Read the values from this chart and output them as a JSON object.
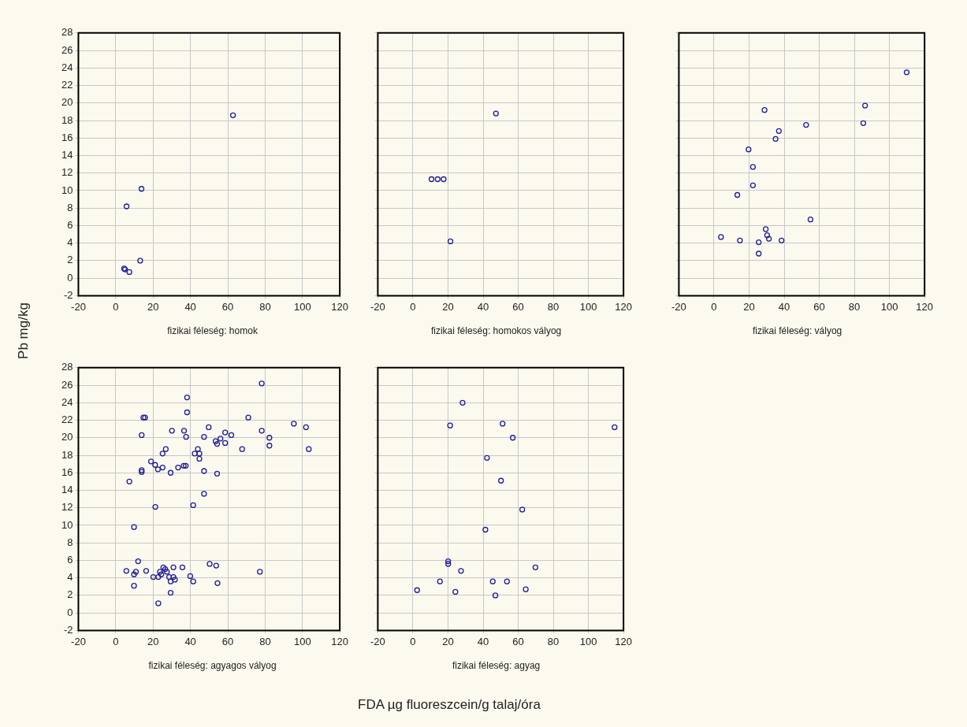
{
  "chart_data": [
    {
      "type": "scatter",
      "title": "fizikai féleség: homok",
      "ylabel": "Pb mg/kg",
      "xlim": [
        -20,
        120
      ],
      "xticks": [
        -20,
        0,
        20,
        40,
        60,
        80,
        100,
        120
      ],
      "ylim": [
        -2,
        28
      ],
      "yticks": [
        -2,
        0,
        2,
        4,
        6,
        8,
        10,
        12,
        14,
        16,
        18,
        20,
        22,
        24,
        26,
        28
      ],
      "grid": true,
      "marker": "circle",
      "series": [
        {
          "color": "#1f1f99",
          "x": [
            62.8,
            13.8,
            5.8,
            13.1,
            4.5,
            5.0,
            7.3
          ],
          "values": [
            18.6,
            10.2,
            8.2,
            2.0,
            1.1,
            1.0,
            0.7
          ]
        }
      ]
    },
    {
      "type": "scatter",
      "title": "fizikai féleség: homokos vályog",
      "xlim": [
        -20,
        120
      ],
      "xticks": [
        -20,
        0,
        20,
        40,
        60,
        80,
        100,
        120
      ],
      "ylim": [
        -2,
        28
      ],
      "yticks": [
        -2,
        0,
        2,
        4,
        6,
        8,
        10,
        12,
        14,
        16,
        18,
        20,
        22,
        24,
        26,
        28
      ],
      "grid": true,
      "marker": "circle",
      "tick_labels": "x",
      "series": [
        {
          "color": "#1f1f99",
          "x": [
            47.3,
            10.6,
            14.1,
            17.5,
            21.4
          ],
          "values": [
            18.8,
            11.3,
            11.3,
            11.3,
            4.2
          ]
        }
      ]
    },
    {
      "type": "scatter",
      "title": "fizikai féleség: vályog",
      "xlim": [
        -20,
        120
      ],
      "xticks": [
        -20,
        0,
        20,
        40,
        60,
        80,
        100,
        120
      ],
      "ylim": [
        -2,
        28
      ],
      "yticks": [
        -2,
        0,
        2,
        4,
        6,
        8,
        10,
        12,
        14,
        16,
        18,
        20,
        22,
        24,
        26,
        28
      ],
      "grid": true,
      "marker": "circle",
      "tick_labels": "x",
      "series": [
        {
          "color": "#1f1f99",
          "x": [
            109.8,
            86.1,
            85.1,
            28.8,
            52.5,
            37.0,
            35.1,
            19.7,
            22.2,
            22.2,
            13.3,
            55.0,
            29.5,
            30.3,
            31.3,
            4.0,
            14.8,
            25.5,
            38.5,
            25.5
          ],
          "values": [
            23.5,
            19.7,
            17.7,
            19.2,
            17.5,
            16.8,
            15.9,
            14.7,
            12.7,
            10.6,
            9.5,
            6.7,
            5.6,
            4.9,
            4.5,
            4.7,
            4.3,
            4.1,
            4.3,
            2.8
          ]
        }
      ]
    },
    {
      "type": "scatter",
      "title": "fizikai féleség: agyagos vályog",
      "xlim": [
        -20,
        120
      ],
      "xticks": [
        -20,
        0,
        20,
        40,
        60,
        80,
        100,
        120
      ],
      "ylim": [
        -2,
        28
      ],
      "yticks": [
        -2,
        0,
        2,
        4,
        6,
        8,
        10,
        12,
        14,
        16,
        18,
        20,
        22,
        24,
        26,
        28
      ],
      "grid": true,
      "marker": "circle",
      "series": [
        {
          "color": "#1f1f99",
          "x": [
            78.2,
            38.2,
            38.2,
            14.8,
            15.7,
            71.0,
            95.4,
            101.9,
            103.4,
            78.2,
            82.3,
            82.3,
            30.1,
            36.6,
            37.7,
            49.8,
            47.3,
            13.9,
            58.6,
            61.9,
            56.1,
            53.5,
            54.3,
            58.6,
            67.7,
            26.8,
            25.1,
            44.0,
            42.3,
            44.8,
            44.8,
            18.9,
            21.1,
            22.6,
            25.1,
            29.4,
            33.4,
            36.4,
            37.5,
            13.9,
            13.9,
            47.3,
            54.3,
            7.3,
            47.3,
            21.2,
            41.5,
            9.8,
            12.0,
            5.7,
            10.8,
            9.8,
            9.8,
            16.3,
            20.1,
            22.8,
            23.7,
            25.5,
            26.5,
            27.4,
            24.4,
            28.6,
            29.4,
            30.9,
            30.9,
            31.7,
            29.4,
            22.8,
            35.7,
            39.9,
            41.5,
            50.3,
            53.8,
            54.5,
            77.2
          ],
          "values": [
            26.2,
            24.6,
            22.9,
            22.3,
            22.3,
            22.3,
            21.6,
            21.2,
            18.7,
            20.8,
            20.0,
            19.1,
            20.8,
            20.8,
            20.1,
            21.2,
            20.1,
            20.3,
            20.6,
            20.3,
            19.9,
            19.6,
            19.3,
            19.4,
            18.7,
            18.7,
            18.2,
            18.7,
            18.2,
            18.2,
            17.6,
            17.3,
            16.9,
            16.4,
            16.6,
            16.0,
            16.6,
            16.8,
            16.8,
            16.3,
            16.1,
            16.2,
            15.9,
            15.0,
            13.6,
            12.1,
            12.3,
            9.8,
            5.9,
            4.8,
            4.7,
            4.4,
            3.1,
            4.8,
            4.1,
            4.1,
            4.7,
            5.2,
            5.0,
            4.7,
            4.4,
            4.1,
            3.6,
            5.2,
            4.1,
            3.8,
            2.3,
            1.1,
            5.2,
            4.2,
            3.6,
            5.6,
            5.4,
            3.4,
            4.7
          ]
        }
      ]
    },
    {
      "type": "scatter",
      "title": "fizikai féleség: agyag",
      "xlabel": "FDA µg fluoreszcein/g talaj/óra",
      "xlim": [
        -20,
        120
      ],
      "xticks": [
        -20,
        0,
        20,
        40,
        60,
        80,
        100,
        120
      ],
      "ylim": [
        -2,
        28
      ],
      "yticks": [
        -2,
        0,
        2,
        4,
        6,
        8,
        10,
        12,
        14,
        16,
        18,
        20,
        22,
        24,
        26,
        28
      ],
      "grid": true,
      "marker": "circle",
      "tick_labels": "x",
      "series": [
        {
          "color": "#1f1f99",
          "x": [
            28.3,
            21.2,
            51.1,
            114.9,
            56.9,
            42.2,
            50.2,
            62.3,
            41.3,
            20.1,
            20.1,
            27.4,
            69.8,
            15.4,
            45.5,
            53.6,
            2.4,
            24.2,
            64.3,
            47.0
          ],
          "values": [
            24.0,
            21.4,
            21.6,
            21.2,
            20.0,
            17.7,
            15.1,
            11.8,
            9.5,
            5.9,
            5.6,
            4.8,
            5.2,
            3.6,
            3.6,
            3.6,
            2.6,
            2.4,
            2.7,
            2.0
          ]
        }
      ]
    }
  ]
}
